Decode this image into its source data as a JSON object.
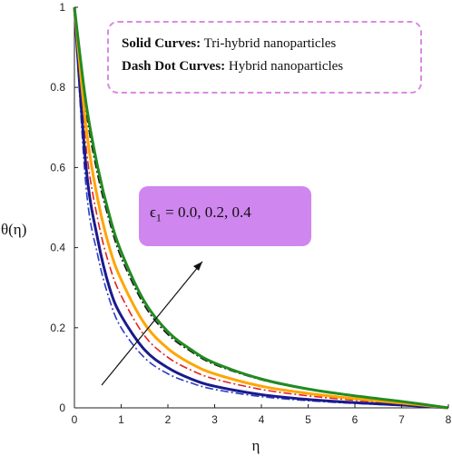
{
  "chart_data": {
    "type": "line",
    "xlabel": "η",
    "ylabel": "θ(η)",
    "xlim": [
      0,
      8
    ],
    "ylim": [
      0,
      1
    ],
    "xticks": [
      "0",
      "1",
      "2",
      "3",
      "4",
      "5",
      "6",
      "7",
      "8"
    ],
    "yticks": [
      "0",
      "0.2",
      "0.4",
      "0.6",
      "0.8",
      "1"
    ],
    "grid": false,
    "series": [
      {
        "group": "solid",
        "color": "#1a1a8c",
        "x": [
          0,
          0.25,
          0.5,
          0.75,
          1,
          1.5,
          2,
          2.5,
          3,
          4,
          5,
          6,
          7,
          8
        ],
        "y": [
          1.0,
          0.6,
          0.42,
          0.3,
          0.23,
          0.145,
          0.1,
          0.072,
          0.054,
          0.033,
          0.021,
          0.013,
          0.007,
          0.0
        ]
      },
      {
        "group": "solid",
        "color": "#ffa500",
        "x": [
          0,
          0.25,
          0.5,
          0.75,
          1,
          1.5,
          2,
          2.5,
          3,
          4,
          5,
          6,
          7,
          8
        ],
        "y": [
          1.0,
          0.7,
          0.52,
          0.4,
          0.32,
          0.21,
          0.148,
          0.11,
          0.085,
          0.054,
          0.036,
          0.023,
          0.012,
          0.0
        ]
      },
      {
        "group": "solid",
        "color": "#228b22",
        "x": [
          0,
          0.25,
          0.5,
          0.75,
          1,
          1.5,
          2,
          2.5,
          3,
          4,
          5,
          6,
          7,
          8
        ],
        "y": [
          1.0,
          0.76,
          0.6,
          0.48,
          0.39,
          0.265,
          0.19,
          0.145,
          0.112,
          0.072,
          0.047,
          0.03,
          0.016,
          0.0
        ]
      },
      {
        "group": "dashdot",
        "color": "#2a3cc8",
        "x": [
          0,
          0.25,
          0.5,
          0.75,
          1,
          1.5,
          2,
          2.5,
          3,
          4,
          5,
          6,
          7,
          8
        ],
        "y": [
          1.0,
          0.55,
          0.38,
          0.27,
          0.2,
          0.125,
          0.085,
          0.062,
          0.046,
          0.028,
          0.018,
          0.011,
          0.006,
          0.0
        ]
      },
      {
        "group": "dashdot",
        "color": "#e82020",
        "x": [
          0,
          0.25,
          0.5,
          0.75,
          1,
          1.5,
          2,
          2.5,
          3,
          4,
          5,
          6,
          7,
          8
        ],
        "y": [
          1.0,
          0.65,
          0.47,
          0.355,
          0.28,
          0.18,
          0.126,
          0.094,
          0.072,
          0.046,
          0.03,
          0.019,
          0.01,
          0.0
        ]
      },
      {
        "group": "dashdot",
        "color": "#1a1a1a",
        "x": [
          0,
          0.25,
          0.5,
          0.75,
          1,
          1.5,
          2,
          2.5,
          3,
          4,
          5,
          6,
          7,
          8
        ],
        "y": [
          1.0,
          0.74,
          0.58,
          0.465,
          0.375,
          0.255,
          0.183,
          0.14,
          0.108,
          0.07,
          0.046,
          0.029,
          0.015,
          0.0
        ]
      }
    ]
  },
  "legend": {
    "solid_label": "Solid Curves:",
    "solid_desc": "Tri-hybrid nanoparticles",
    "dash_label": "Dash Dot Curves:",
    "dash_desc": "Hybrid nanoparticles"
  },
  "annotation": {
    "symbol": "ϵ",
    "subscript": "1",
    "values": " = 0.0, 0.2, 0.4",
    "arrow_color": "#111111"
  },
  "colors": {
    "legend_border": "#d98be0",
    "annotation_fill": "#cf86ee"
  }
}
